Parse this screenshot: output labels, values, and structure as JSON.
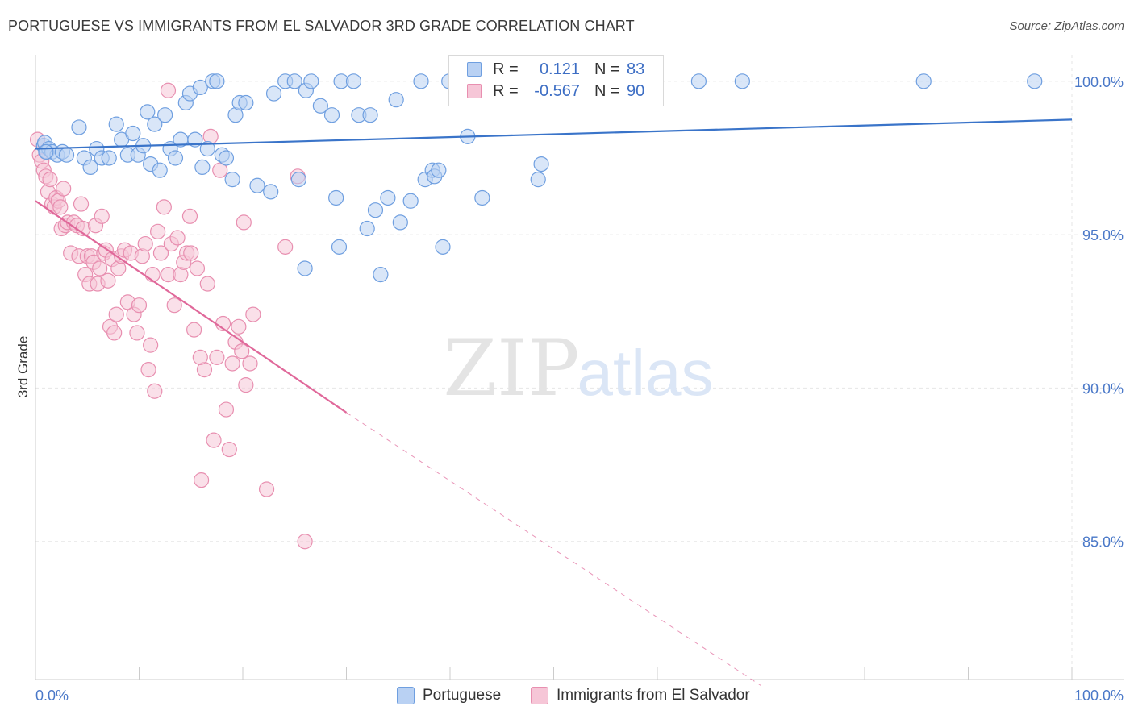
{
  "title": "PORTUGUESE VS IMMIGRANTS FROM EL SALVADOR 3RD GRADE CORRELATION CHART",
  "source": "Source: ZipAtlas.com",
  "watermark": {
    "zip": "ZIP",
    "atlas": "atlas"
  },
  "colors": {
    "blue": "#6f9fe0",
    "blue_fill": "#b9d1f3",
    "blue_line": "#3a74c9",
    "pink": "#e88fb0",
    "pink_fill": "#f6c6d7",
    "pink_line": "#e0689a",
    "axis_text": "#4a78c8",
    "grid": "#e6e6e6"
  },
  "legend_top": {
    "rows": [
      {
        "swatch": "blue",
        "r_label": "R =",
        "r_value": "0.121",
        "n_label": "N =",
        "n_value": "83"
      },
      {
        "swatch": "pink",
        "r_label": "R =",
        "r_value": "-0.567",
        "n_label": "N =",
        "n_value": "90"
      }
    ]
  },
  "legend_bottom": [
    {
      "swatch": "blue",
      "label": "Portuguese"
    },
    {
      "swatch": "pink",
      "label": "Immigrants from El Salvador"
    }
  ],
  "chart_data": {
    "type": "scatter",
    "title": "PORTUGUESE VS IMMIGRANTS FROM EL SALVADOR 3RD GRADE CORRELATION CHART",
    "xlabel": "",
    "ylabel": "3rd Grade",
    "xlim": [
      0,
      100
    ],
    "ylim": [
      80.5,
      100.6
    ],
    "x_tick_labels": [
      "0.0%",
      "100.0%"
    ],
    "y_ticks": [
      85,
      90,
      95,
      100
    ],
    "y_tick_labels": [
      "85.0%",
      "90.0%",
      "95.0%",
      "100.0%"
    ],
    "grid": true,
    "legend": "top-center",
    "series": [
      {
        "name": "Portuguese",
        "color": "blue",
        "r": 0.121,
        "n": 83,
        "trend": {
          "x": [
            0,
            100
          ],
          "y": [
            97.8,
            98.75
          ]
        },
        "points": [
          [
            0.8,
            97.9
          ],
          [
            0.9,
            98.0
          ],
          [
            1.1,
            97.7
          ],
          [
            1.3,
            97.8
          ],
          [
            1.6,
            97.7
          ],
          [
            2.1,
            97.6
          ],
          [
            2.6,
            97.7
          ],
          [
            3.0,
            97.6
          ],
          [
            4.2,
            98.5
          ],
          [
            4.7,
            97.5
          ],
          [
            5.3,
            97.2
          ],
          [
            5.9,
            97.8
          ],
          [
            6.4,
            97.5
          ],
          [
            7.1,
            97.5
          ],
          [
            7.8,
            98.6
          ],
          [
            8.3,
            98.1
          ],
          [
            8.9,
            97.6
          ],
          [
            9.4,
            98.3
          ],
          [
            9.9,
            97.6
          ],
          [
            10.4,
            97.9
          ],
          [
            10.8,
            99.0
          ],
          [
            11.1,
            97.3
          ],
          [
            11.5,
            98.6
          ],
          [
            12.0,
            97.1
          ],
          [
            12.5,
            98.9
          ],
          [
            13.0,
            97.8
          ],
          [
            13.5,
            97.5
          ],
          [
            14.0,
            98.1
          ],
          [
            14.5,
            99.3
          ],
          [
            14.9,
            99.6
          ],
          [
            15.4,
            98.1
          ],
          [
            15.9,
            99.8
          ],
          [
            16.1,
            97.2
          ],
          [
            16.6,
            97.8
          ],
          [
            17.1,
            100.0
          ],
          [
            17.5,
            100.0
          ],
          [
            18.0,
            97.6
          ],
          [
            18.4,
            97.5
          ],
          [
            19.0,
            96.8
          ],
          [
            19.3,
            98.9
          ],
          [
            19.7,
            99.3
          ],
          [
            20.3,
            99.3
          ],
          [
            21.4,
            96.6
          ],
          [
            22.7,
            96.4
          ],
          [
            23.0,
            99.6
          ],
          [
            24.1,
            100.0
          ],
          [
            25.0,
            100.0
          ],
          [
            25.4,
            96.8
          ],
          [
            26.1,
            99.7
          ],
          [
            26.6,
            100.0
          ],
          [
            27.5,
            99.2
          ],
          [
            28.6,
            98.9
          ],
          [
            29.0,
            96.2
          ],
          [
            29.3,
            94.6
          ],
          [
            29.5,
            100.0
          ],
          [
            30.7,
            100.0
          ],
          [
            31.2,
            98.9
          ],
          [
            32.0,
            95.2
          ],
          [
            32.3,
            98.9
          ],
          [
            32.8,
            95.8
          ],
          [
            33.3,
            93.7
          ],
          [
            34.0,
            96.2
          ],
          [
            34.8,
            99.4
          ],
          [
            35.2,
            95.4
          ],
          [
            36.2,
            96.1
          ],
          [
            37.2,
            100.0
          ],
          [
            37.6,
            96.8
          ],
          [
            38.3,
            97.1
          ],
          [
            38.5,
            96.9
          ],
          [
            38.9,
            97.1
          ],
          [
            39.3,
            94.6
          ],
          [
            26.0,
            93.9
          ],
          [
            39.9,
            100.0
          ],
          [
            41.7,
            98.2
          ],
          [
            43.1,
            96.2
          ],
          [
            47.8,
            100.0
          ],
          [
            48.5,
            96.8
          ],
          [
            48.8,
            97.3
          ],
          [
            64.0,
            100.0
          ],
          [
            68.2,
            100.0
          ],
          [
            85.7,
            100.0
          ],
          [
            96.4,
            100.0
          ],
          [
            1.0,
            97.7
          ]
        ]
      },
      {
        "name": "Immigrants from El Salvador",
        "color": "pink",
        "r": -0.567,
        "n": 90,
        "trend": {
          "x": [
            0,
            30
          ],
          "y": [
            96.1,
            89.2
          ]
        },
        "trend_dashed": {
          "x": [
            30,
            70
          ],
          "y": [
            89.2,
            80.3
          ]
        },
        "points": [
          [
            0.2,
            98.1
          ],
          [
            0.4,
            97.6
          ],
          [
            0.6,
            97.4
          ],
          [
            0.8,
            97.1
          ],
          [
            1.0,
            96.9
          ],
          [
            1.2,
            96.4
          ],
          [
            1.4,
            96.8
          ],
          [
            1.6,
            96.0
          ],
          [
            1.8,
            95.9
          ],
          [
            2.0,
            96.2
          ],
          [
            2.2,
            96.1
          ],
          [
            2.4,
            95.9
          ],
          [
            2.5,
            95.2
          ],
          [
            2.7,
            96.5
          ],
          [
            2.9,
            95.3
          ],
          [
            3.1,
            95.4
          ],
          [
            3.4,
            94.4
          ],
          [
            3.7,
            95.4
          ],
          [
            4.0,
            95.3
          ],
          [
            4.2,
            94.3
          ],
          [
            4.4,
            96.0
          ],
          [
            4.6,
            95.2
          ],
          [
            4.8,
            93.7
          ],
          [
            5.0,
            94.3
          ],
          [
            5.2,
            93.4
          ],
          [
            5.4,
            94.3
          ],
          [
            5.6,
            94.1
          ],
          [
            5.8,
            95.3
          ],
          [
            6.0,
            93.4
          ],
          [
            6.2,
            93.9
          ],
          [
            6.4,
            95.6
          ],
          [
            6.6,
            94.4
          ],
          [
            6.8,
            94.5
          ],
          [
            7.0,
            93.5
          ],
          [
            7.2,
            92.0
          ],
          [
            7.4,
            94.2
          ],
          [
            7.6,
            91.8
          ],
          [
            7.8,
            92.4
          ],
          [
            8.0,
            93.9
          ],
          [
            8.3,
            94.3
          ],
          [
            8.6,
            94.5
          ],
          [
            8.9,
            92.8
          ],
          [
            9.2,
            94.4
          ],
          [
            9.5,
            92.4
          ],
          [
            9.8,
            91.8
          ],
          [
            10.0,
            92.7
          ],
          [
            10.3,
            94.3
          ],
          [
            10.6,
            94.7
          ],
          [
            10.9,
            90.6
          ],
          [
            11.1,
            91.4
          ],
          [
            11.3,
            93.7
          ],
          [
            11.5,
            89.9
          ],
          [
            11.8,
            95.1
          ],
          [
            12.1,
            94.4
          ],
          [
            12.4,
            95.9
          ],
          [
            12.8,
            93.7
          ],
          [
            13.1,
            94.7
          ],
          [
            13.4,
            92.7
          ],
          [
            13.7,
            94.9
          ],
          [
            14.0,
            93.7
          ],
          [
            14.3,
            94.1
          ],
          [
            14.6,
            94.4
          ],
          [
            14.9,
            95.6
          ],
          [
            15.0,
            94.4
          ],
          [
            15.3,
            91.9
          ],
          [
            15.6,
            93.9
          ],
          [
            16.0,
            87.0
          ],
          [
            16.3,
            90.6
          ],
          [
            16.6,
            93.4
          ],
          [
            16.9,
            98.2
          ],
          [
            17.2,
            88.3
          ],
          [
            17.5,
            91.0
          ],
          [
            17.8,
            97.1
          ],
          [
            18.1,
            92.1
          ],
          [
            18.4,
            89.3
          ],
          [
            18.7,
            88.0
          ],
          [
            19.0,
            90.8
          ],
          [
            19.3,
            91.5
          ],
          [
            19.6,
            92.0
          ],
          [
            19.9,
            91.2
          ],
          [
            20.1,
            95.4
          ],
          [
            20.3,
            90.1
          ],
          [
            20.7,
            90.8
          ],
          [
            21.0,
            92.4
          ],
          [
            22.3,
            86.7
          ],
          [
            24.1,
            94.6
          ],
          [
            25.3,
            96.9
          ],
          [
            26.0,
            85.0
          ],
          [
            12.8,
            99.7
          ],
          [
            15.9,
            91.0
          ]
        ]
      }
    ]
  }
}
